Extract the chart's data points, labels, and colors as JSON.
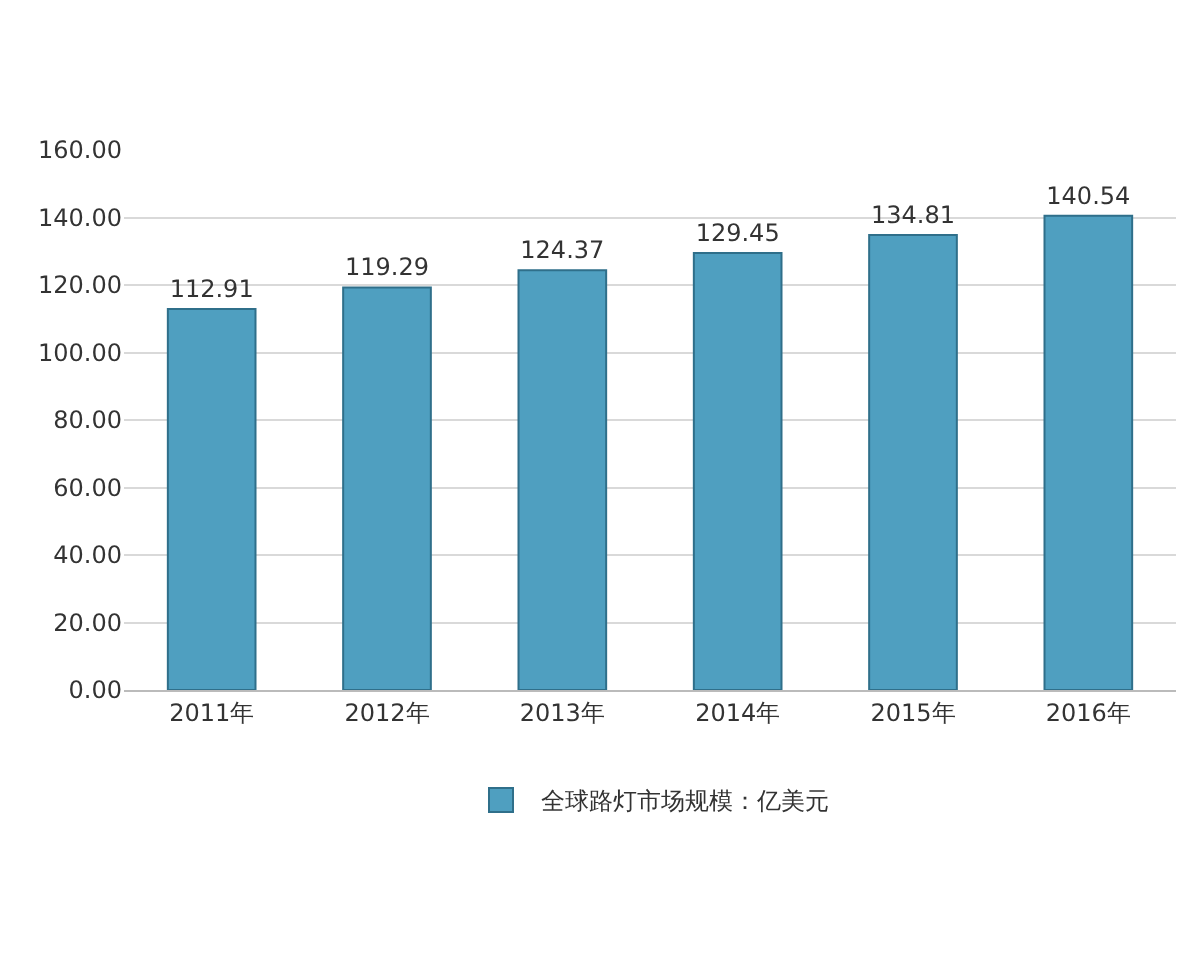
{
  "chart_data": {
    "type": "bar",
    "categories": [
      "2011年",
      "2012年",
      "2013年",
      "2014年",
      "2015年",
      "2016年"
    ],
    "series": [
      {
        "name": "全球路灯市场规模：亿美元",
        "color": "#4f9fc0",
        "values": [
          112.91,
          119.29,
          124.37,
          129.45,
          134.81,
          140.54
        ]
      }
    ],
    "ylim": [
      0,
      160
    ],
    "yticks": [
      {
        "value": 0,
        "label": "0.00"
      },
      {
        "value": 20,
        "label": "20.00"
      },
      {
        "value": 40,
        "label": "40.00"
      },
      {
        "value": 60,
        "label": "60.00"
      },
      {
        "value": 80,
        "label": "80.00"
      },
      {
        "value": 100,
        "label": "100.00"
      },
      {
        "value": 120,
        "label": "120.00"
      },
      {
        "value": 140,
        "label": "140.00"
      },
      {
        "value": 160,
        "label": "160.00"
      }
    ],
    "grid": "y",
    "legend": "bottom",
    "data_labels": true
  }
}
